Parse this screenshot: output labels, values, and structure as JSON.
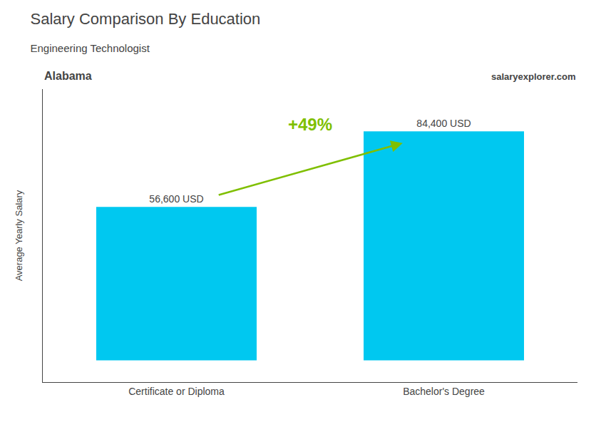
{
  "chart_data": {
    "type": "bar",
    "title": "Salary Comparison By Education",
    "subtitle": "Engineering Technologist",
    "annotations": [
      "Alabama",
      "salary",
      "explorer.com",
      "+49%"
    ],
    "ylabel": "Average Yearly Salary",
    "categories": [
      "Certificate or Diploma",
      "Bachelor's Degree"
    ],
    "values": [
      56600,
      84400
    ],
    "value_labels": [
      "56,600 USD",
      "84,400 USD"
    ],
    "data_labels": true,
    "color": "#00C8F0",
    "ylim": [
      -8000,
      100000
    ],
    "grid": false,
    "tick_labels": "x"
  }
}
